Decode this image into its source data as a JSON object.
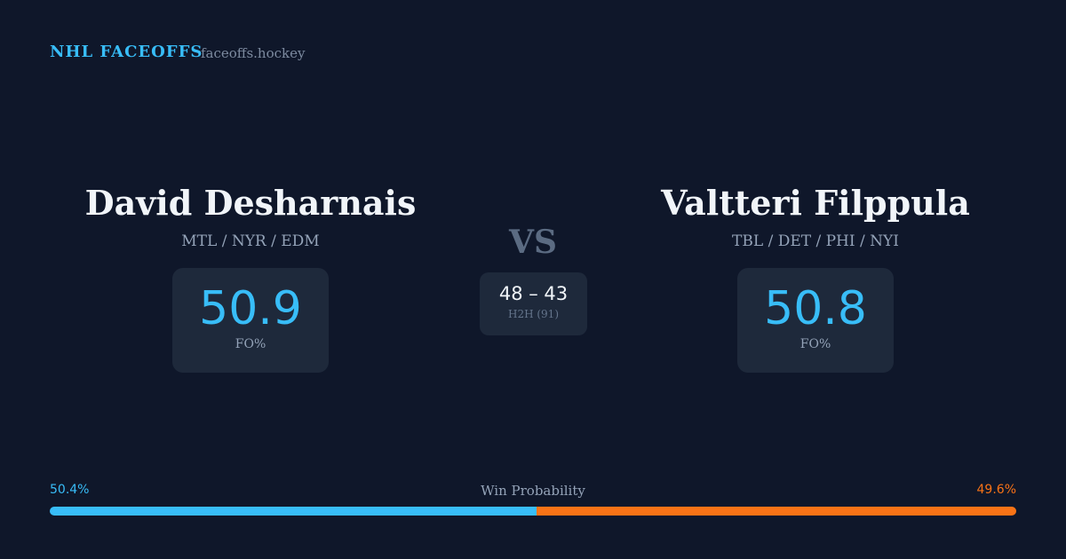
{
  "brand": {
    "title": "NHL FACEOFFS",
    "site": "faceoffs.hockey"
  },
  "players": [
    {
      "name": "David Desharnais",
      "teams": "MTL / NYR / EDM",
      "fo": 50.9,
      "fo_label": "FO%"
    },
    {
      "name": "Valtteri Filppula",
      "teams": "TBL / DET / PHI / NYI",
      "fo": 50.8,
      "fo_label": "FO%"
    }
  ],
  "versus": "VS",
  "h2h": {
    "score": "48 – 43",
    "label": "H2H (91)"
  },
  "win_probability": {
    "title": "Win Probability",
    "left": {
      "value": 50.4,
      "label": "50.4%",
      "color": "#38bdf8"
    },
    "right": {
      "value": 49.6,
      "label": "49.6%",
      "color": "#f97316"
    }
  }
}
